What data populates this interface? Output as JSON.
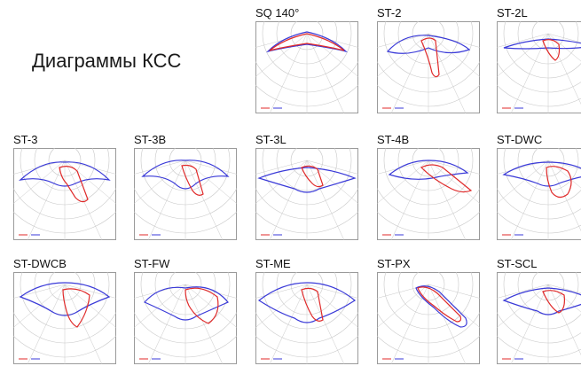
{
  "page_title": "Диаграммы КСС",
  "colors": {
    "c0": "#3a3ad8",
    "c90": "#e02a2a",
    "grid": "#c8c8c8",
    "border": "#9a9a9a"
  },
  "diagrams": [
    {
      "label": "SQ 140°",
      "shape": "bat"
    },
    {
      "label": "ST-2",
      "shape": "st2"
    },
    {
      "label": "ST-2L",
      "shape": "st2l"
    },
    {
      "label": "ST-3",
      "shape": "st3"
    },
    {
      "label": "ST-3B",
      "shape": "st3b"
    },
    {
      "label": "ST-3L",
      "shape": "st3l"
    },
    {
      "label": "ST-4B",
      "shape": "st4b"
    },
    {
      "label": "ST-DWC",
      "shape": "dwc"
    },
    {
      "label": "ST-DWCB",
      "shape": "dwcb"
    },
    {
      "label": "ST-FW",
      "shape": "fw"
    },
    {
      "label": "ST-ME",
      "shape": "me"
    },
    {
      "label": "ST-PX",
      "shape": "px"
    },
    {
      "label": "ST-SCL",
      "shape": "scl"
    }
  ]
}
